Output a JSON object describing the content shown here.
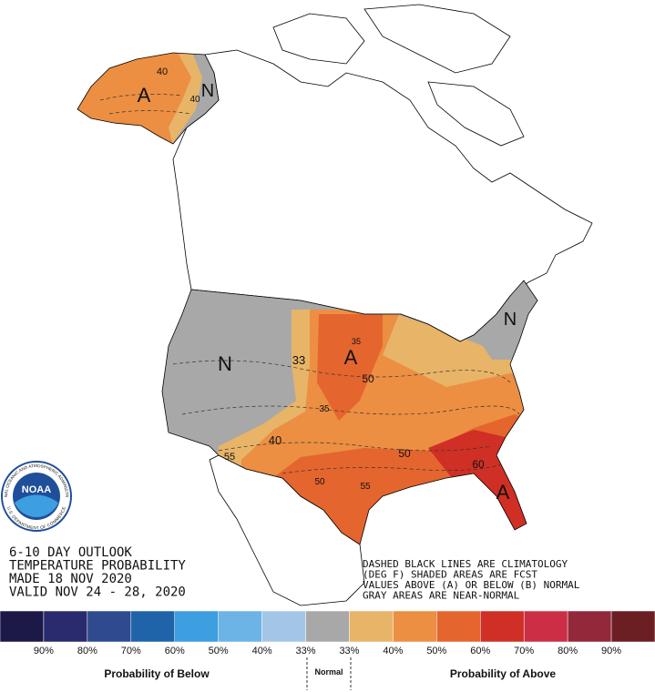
{
  "outlook": {
    "title_lines": [
      "6-10 DAY OUTLOOK",
      "TEMPERATURE PROBABILITY",
      "MADE  18 NOV 2020",
      "VALID  NOV 24 - 28, 2020"
    ],
    "notes": [
      "DASHED BLACK LINES ARE CLIMATOLOGY",
      "(DEG F) SHADED AREAS ARE FCST",
      "VALUES ABOVE (A) OR BELOW (B) NORMAL",
      "GRAY AREAS ARE NEAR-NORMAL"
    ],
    "map_labels": [
      "40",
      "A",
      "N",
      "40",
      "33",
      "N",
      "A",
      "35",
      "50",
      "35",
      "40",
      "55",
      "50",
      "55",
      "50",
      "60",
      "A",
      "N"
    ]
  },
  "logo": {
    "name": "NOAA",
    "ring_top": "NATIONAL OCEANIC AND ATMOSPHERIC ADMINISTRATION",
    "ring_bottom": "U.S. DEPARTMENT OF COMMERCE"
  },
  "legend": {
    "colors": [
      "#1c1848",
      "#2a2a6e",
      "#2f4a8e",
      "#1f63a8",
      "#3d9ee0",
      "#6cb4e6",
      "#a3c6e6",
      "#a8a8a8",
      "#e8b468",
      "#ec8f42",
      "#e5652e",
      "#cf2f24",
      "#cc2f45",
      "#93283a",
      "#6b1f22"
    ],
    "labels": [
      "90%",
      "80%",
      "70%",
      "60%",
      "50%",
      "40%",
      "33%",
      "33%",
      "40%",
      "50%",
      "60%",
      "70%",
      "80%",
      "90%"
    ],
    "below_label": "Probability of Below",
    "normal_label": "Normal",
    "above_label": "Probability of Above"
  }
}
